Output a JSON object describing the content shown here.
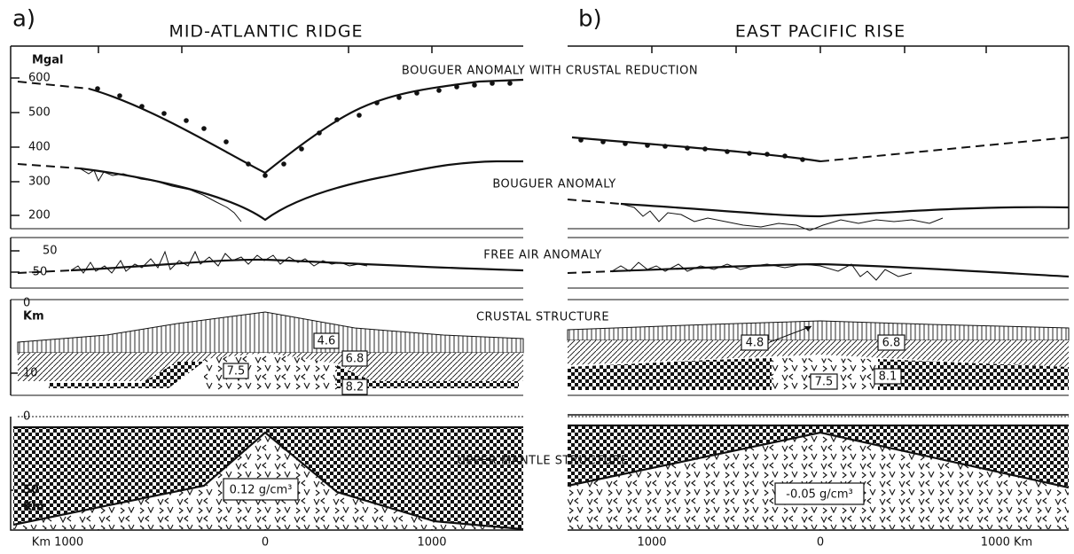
{
  "panels": [
    {
      "letter": "a)",
      "title": "MID-ATLANTIC RIDGE",
      "layers": {
        "density_boxes": [
          "4.6",
          "6.8",
          "7.5",
          "8.2",
          "0.12 g/cm³"
        ]
      },
      "x_axis": [
        "Km 1000",
        "0",
        "1000"
      ]
    },
    {
      "letter": "b)",
      "title": "EAST PACIFIC RISE",
      "layers": {
        "density_boxes": [
          "4.8",
          "6.8",
          "7.5",
          "8.1",
          "-0.05 g/cm³"
        ]
      },
      "x_axis": [
        "1000",
        "0",
        "1000 Km"
      ]
    }
  ],
  "annotations": [
    "BOUGUER ANOMALY WITH CRUSTAL REDUCTION",
    "BOUGUER ANOMALY",
    "FREE AIR ANOMALY",
    "CRUSTAL STRUCTURE",
    "UPPER MANTLE STRUCTURE"
  ],
  "y_axes": {
    "gravity": [
      "Mgal",
      "600",
      "500",
      "400",
      "300",
      "200"
    ],
    "free_air": [
      "50",
      "-50"
    ],
    "crust": [
      "0",
      "Km",
      "10"
    ],
    "mantle": [
      "0",
      "50",
      "Km"
    ]
  }
}
